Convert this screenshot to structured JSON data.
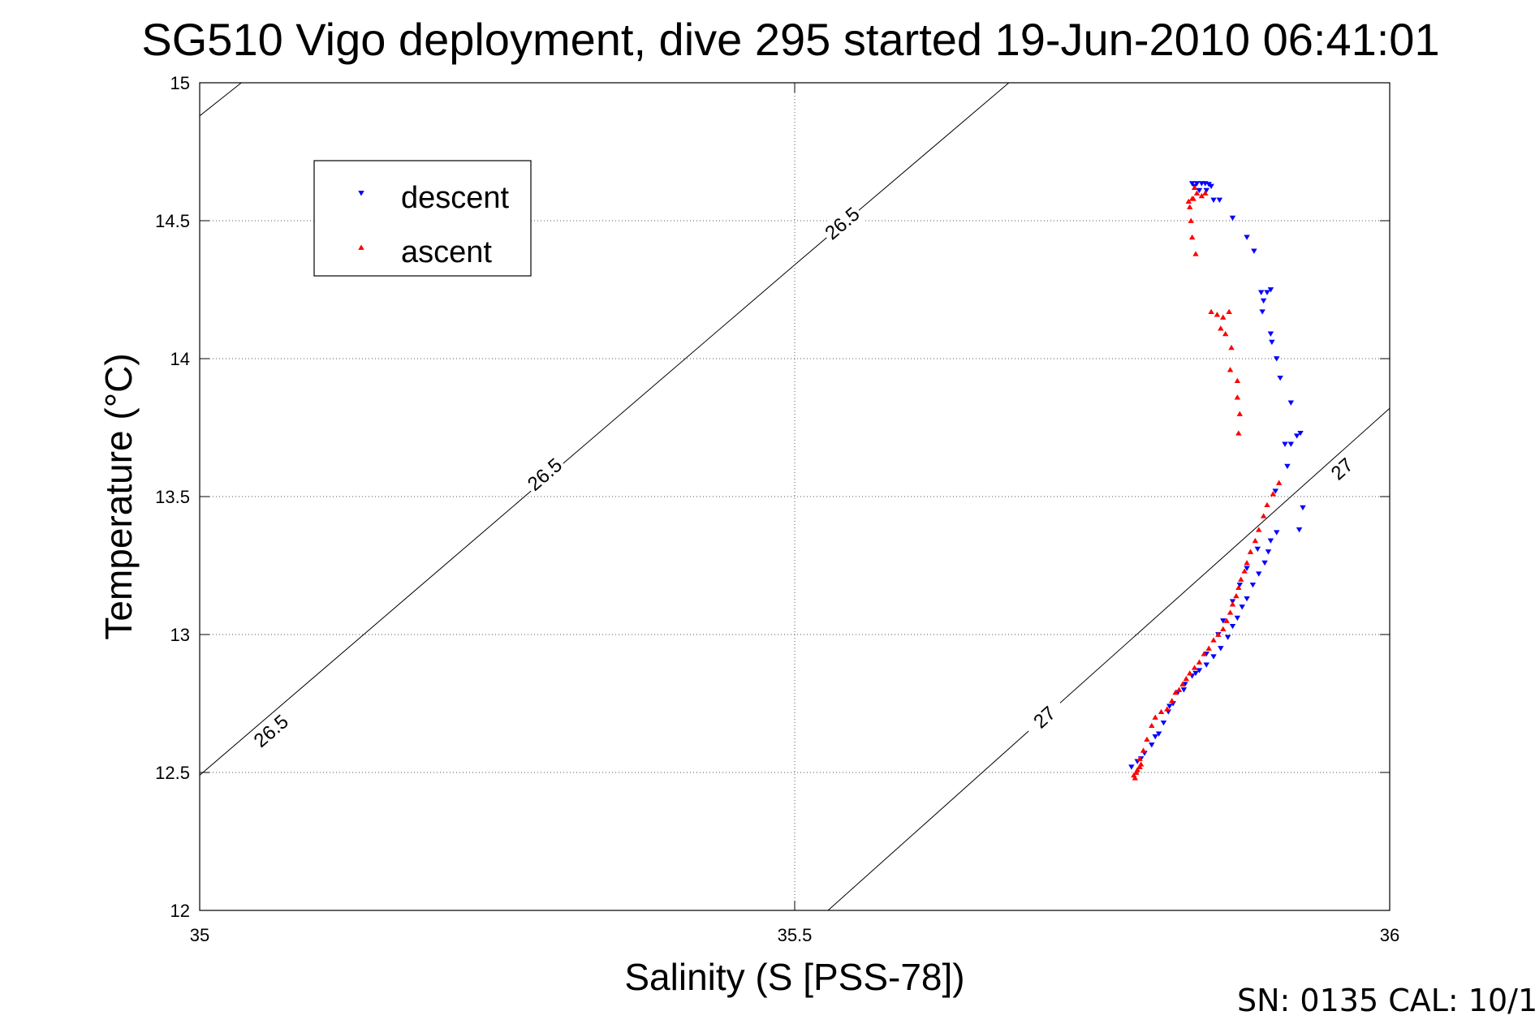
{
  "chart_data": {
    "type": "scatter",
    "title": "SG510 Vigo deployment, dive 295 started 19-Jun-2010 06:41:01",
    "xlabel": "Salinity (S [PSS-78])",
    "ylabel": "Temperature (°C)",
    "xlim": [
      35,
      36
    ],
    "ylim": [
      12,
      15
    ],
    "xticks": [
      35,
      35.5,
      36
    ],
    "xtick_labels": [
      "35",
      "35.5",
      "36"
    ],
    "yticks": [
      12,
      12.5,
      13,
      13.5,
      14,
      14.5,
      15
    ],
    "ytick_labels": [
      "12",
      "12.5",
      "13",
      "13.5",
      "14",
      "14.5",
      "15"
    ],
    "grid": true,
    "legend_position": "top-left",
    "footer": "SN: 0135  CAL: 10/1",
    "contours": [
      {
        "level": "26.5",
        "points": [
          [
            35.0,
            12.49
          ],
          [
            35.5,
            14.34
          ],
          [
            35.68,
            15.0
          ]
        ],
        "labels": [
          {
            "text": "26.5",
            "x": 35.06,
            "y": 12.65
          },
          {
            "text": "26.5",
            "x": 35.29,
            "y": 13.58
          },
          {
            "text": "26.5",
            "x": 35.54,
            "y": 14.49
          }
        ]
      },
      {
        "level": "26.5",
        "points": [
          [
            35.0,
            14.88
          ],
          [
            35.035,
            15.0
          ]
        ],
        "labels": []
      },
      {
        "level": "27",
        "points": [
          [
            35.528,
            12.0
          ],
          [
            36.0,
            13.82
          ]
        ],
        "labels": [
          {
            "text": "27",
            "x": 35.71,
            "y": 12.7
          },
          {
            "text": "27",
            "x": 35.96,
            "y": 13.6
          }
        ]
      }
    ],
    "series": [
      {
        "name": "descent",
        "color": "#0000ff",
        "marker": "triangle-down",
        "points": [
          [
            35.834,
            14.635
          ],
          [
            35.838,
            14.635
          ],
          [
            35.842,
            14.635
          ],
          [
            35.845,
            14.635
          ],
          [
            35.848,
            14.632
          ],
          [
            35.85,
            14.625
          ],
          [
            35.846,
            14.61
          ],
          [
            35.84,
            14.61
          ],
          [
            35.836,
            14.625
          ],
          [
            35.852,
            14.575
          ],
          [
            35.857,
            14.575
          ],
          [
            35.868,
            14.51
          ],
          [
            35.88,
            14.44
          ],
          [
            35.886,
            14.39
          ],
          [
            35.892,
            14.24
          ],
          [
            35.897,
            14.24
          ],
          [
            35.9,
            14.25
          ],
          [
            35.894,
            14.21
          ],
          [
            35.893,
            14.17
          ],
          [
            35.9,
            14.09
          ],
          [
            35.901,
            14.06
          ],
          [
            35.905,
            14.0
          ],
          [
            35.908,
            13.93
          ],
          [
            35.917,
            13.84
          ],
          [
            35.922,
            13.72
          ],
          [
            35.925,
            13.73
          ],
          [
            35.912,
            13.69
          ],
          [
            35.917,
            13.69
          ],
          [
            35.914,
            13.61
          ],
          [
            35.904,
            13.52
          ],
          [
            35.927,
            13.46
          ],
          [
            35.924,
            13.38
          ],
          [
            35.905,
            13.37
          ],
          [
            35.9,
            13.34
          ],
          [
            35.898,
            13.3
          ],
          [
            35.895,
            13.26
          ],
          [
            35.89,
            13.22
          ],
          [
            35.885,
            13.18
          ],
          [
            35.88,
            13.13
          ],
          [
            35.876,
            13.1
          ],
          [
            35.872,
            13.06
          ],
          [
            35.868,
            13.03
          ],
          [
            35.864,
            12.99
          ],
          [
            35.858,
            12.95
          ],
          [
            35.852,
            12.92
          ],
          [
            35.846,
            12.89
          ],
          [
            35.84,
            12.87
          ],
          [
            35.834,
            12.85
          ],
          [
            35.828,
            12.82
          ],
          [
            35.822,
            12.79
          ],
          [
            35.818,
            12.75
          ],
          [
            35.814,
            12.72
          ],
          [
            35.81,
            12.68
          ],
          [
            35.806,
            12.64
          ],
          [
            35.8,
            12.6
          ],
          [
            35.794,
            12.57
          ],
          [
            35.788,
            12.54
          ],
          [
            35.783,
            12.52
          ],
          [
            35.791,
            12.55
          ],
          [
            35.803,
            12.63
          ],
          [
            35.815,
            12.74
          ],
          [
            35.827,
            12.8
          ],
          [
            35.837,
            12.86
          ],
          [
            35.846,
            12.93
          ],
          [
            35.856,
            13.0
          ],
          [
            35.86,
            13.05
          ],
          [
            35.868,
            13.12
          ],
          [
            35.874,
            13.18
          ],
          [
            35.88,
            13.24
          ],
          [
            35.889,
            13.31
          ]
        ]
      },
      {
        "name": "ascent",
        "color": "#ff0000",
        "marker": "triangle-up",
        "points": [
          [
            35.786,
            12.48
          ],
          [
            35.787,
            12.5
          ],
          [
            35.79,
            12.52
          ],
          [
            35.79,
            12.55
          ],
          [
            35.793,
            12.58
          ],
          [
            35.796,
            12.62
          ],
          [
            35.8,
            12.67
          ],
          [
            35.803,
            12.7
          ],
          [
            35.808,
            12.72
          ],
          [
            35.813,
            12.73
          ],
          [
            35.817,
            12.76
          ],
          [
            35.82,
            12.79
          ],
          [
            35.823,
            12.8
          ],
          [
            35.826,
            12.82
          ],
          [
            35.829,
            12.84
          ],
          [
            35.832,
            12.86
          ],
          [
            35.836,
            12.88
          ],
          [
            35.84,
            12.9
          ],
          [
            35.844,
            12.93
          ],
          [
            35.848,
            12.95
          ],
          [
            35.852,
            12.98
          ],
          [
            35.856,
            13.0
          ],
          [
            35.86,
            13.02
          ],
          [
            35.863,
            13.05
          ],
          [
            35.866,
            13.08
          ],
          [
            35.868,
            13.11
          ],
          [
            35.871,
            13.14
          ],
          [
            35.873,
            13.17
          ],
          [
            35.875,
            13.2
          ],
          [
            35.878,
            13.23
          ],
          [
            35.88,
            13.26
          ],
          [
            35.883,
            13.3
          ],
          [
            35.887,
            13.34
          ],
          [
            35.89,
            13.38
          ],
          [
            35.894,
            13.43
          ],
          [
            35.897,
            13.47
          ],
          [
            35.902,
            13.51
          ],
          [
            35.907,
            13.55
          ],
          [
            35.873,
            13.73
          ],
          [
            35.874,
            13.8
          ],
          [
            35.872,
            13.86
          ],
          [
            35.872,
            13.92
          ],
          [
            35.866,
            13.96
          ],
          [
            35.867,
            14.04
          ],
          [
            35.862,
            14.09
          ],
          [
            35.858,
            14.11
          ],
          [
            35.86,
            14.15
          ],
          [
            35.865,
            14.17
          ],
          [
            35.855,
            14.16
          ],
          [
            35.85,
            14.17
          ],
          [
            35.837,
            14.38
          ],
          [
            35.834,
            14.44
          ],
          [
            35.833,
            14.5
          ],
          [
            35.832,
            14.55
          ],
          [
            35.831,
            14.57
          ],
          [
            35.835,
            14.58
          ],
          [
            35.838,
            14.6
          ],
          [
            35.842,
            14.59
          ],
          [
            35.845,
            14.6
          ],
          [
            35.836,
            14.62
          ],
          [
            35.834,
            14.58
          ],
          [
            35.785,
            12.49
          ],
          [
            35.788,
            12.51
          ],
          [
            35.791,
            12.53
          ]
        ]
      }
    ]
  }
}
